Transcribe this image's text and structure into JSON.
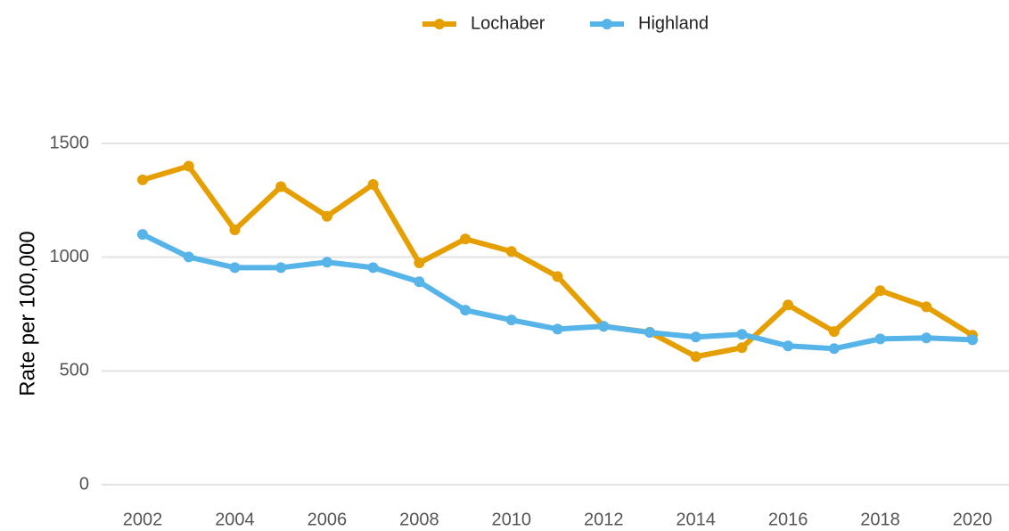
{
  "chart_data": {
    "type": "line",
    "y_label": "Rate per 100,000",
    "x": [
      2002,
      2003,
      2004,
      2005,
      2006,
      2007,
      2008,
      2009,
      2010,
      2011,
      2012,
      2013,
      2014,
      2015,
      2016,
      2017,
      2018,
      2019,
      2020
    ],
    "series": [
      {
        "name": "Lochaber",
        "color": "#E69F00",
        "values": [
          1340,
          1400,
          1120,
          1310,
          1180,
          1320,
          975,
          1080,
          1025,
          915,
          696,
          670,
          563,
          602,
          790,
          673,
          853,
          782,
          657
        ]
      },
      {
        "name": "Highland",
        "color": "#56B4E9",
        "values": [
          1100,
          1001,
          954,
          954,
          978,
          954,
          892,
          767,
          724,
          684,
          696,
          669,
          649,
          661,
          610,
          598,
          641,
          645,
          637
        ]
      }
    ],
    "xlim": [
      2002,
      2020
    ],
    "xticks": [
      2002,
      2004,
      2006,
      2008,
      2010,
      2012,
      2014,
      2016,
      2018,
      2020
    ],
    "ylim": [
      0,
      1500
    ],
    "yticks": [
      0,
      500,
      1000,
      1500
    ],
    "grid": true,
    "legend": "top"
  }
}
